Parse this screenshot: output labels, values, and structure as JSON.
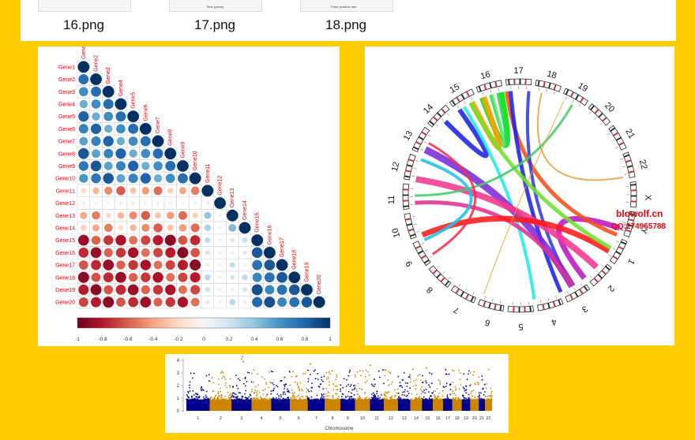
{
  "thumbnails": [
    {
      "caption": "16.png"
    },
    {
      "caption": "17.png",
      "axis_label": "Time (years)"
    },
    {
      "caption": "18.png",
      "axis_label": "False positive rate"
    }
  ],
  "corrplot": {
    "genes": [
      "Gene1",
      "Gene2",
      "Gene3",
      "Gene4",
      "Gene5",
      "Gene6",
      "Gene7",
      "Gene8",
      "Gene9",
      "Gene10",
      "Gene11",
      "Gene12",
      "Gene13",
      "Gene14",
      "Gene15",
      "Gene16",
      "Gene17",
      "Gene18",
      "Gene19",
      "Gene20"
    ],
    "colorbar_ticks": [
      "-1",
      "-0.8",
      "-0.6",
      "-0.4",
      "-0.2",
      "0",
      "0.2",
      "0.4",
      "0.6",
      "0.8",
      "1"
    ],
    "colors": {
      "negative": "#67001F",
      "neutral": "#F7F7F7",
      "positive": "#053061",
      "label": "#E8000B"
    }
  },
  "circos": {
    "chromosomes": [
      "1",
      "2",
      "3",
      "4",
      "5",
      "6",
      "7",
      "8",
      "9",
      "10",
      "11",
      "12",
      "13",
      "14",
      "15",
      "16",
      "17",
      "18",
      "19",
      "20",
      "21",
      "22",
      "X",
      "Y"
    ],
    "watermark_site": "blowolf.cn",
    "watermark_qq": "QQ:274965788"
  },
  "manhattan": {
    "y_ticks": [
      "0",
      "1",
      "2",
      "3",
      "4"
    ],
    "chromosomes": [
      "1",
      "2",
      "3",
      "4",
      "5",
      "6",
      "7",
      "8",
      "9",
      "10",
      "11",
      "12",
      "13",
      "14",
      "15",
      "16",
      "17",
      "18",
      "19",
      "20",
      "21",
      "22"
    ],
    "xlabel": "Chromosome",
    "colors": {
      "odd": "#00008B",
      "even": "#CD8500"
    }
  }
}
